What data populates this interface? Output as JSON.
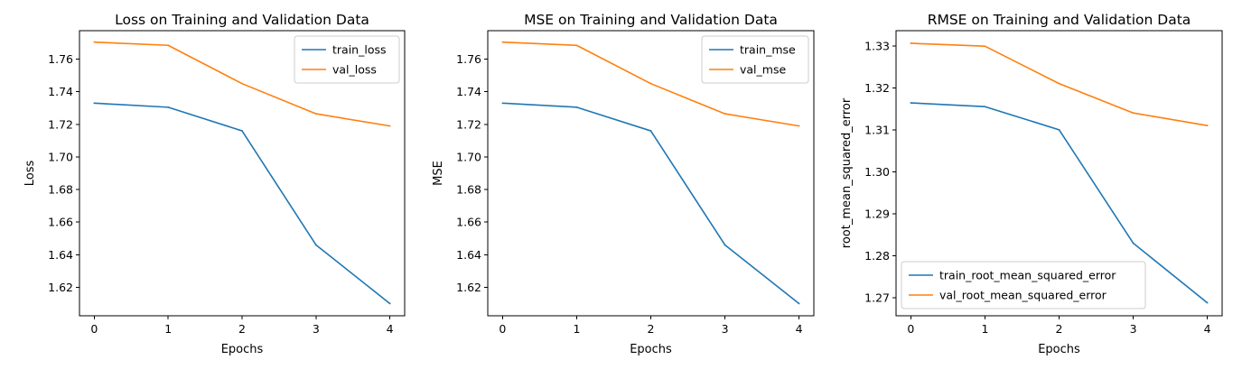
{
  "colors": {
    "train": "#1f77b4",
    "val": "#ff7f0e"
  },
  "chart_data": [
    {
      "type": "line",
      "title": "Loss on Training and Validation Data",
      "xlabel": "Epochs",
      "ylabel": "Loss",
      "x": [
        0,
        1,
        2,
        3,
        4
      ],
      "x_ticks": [
        "0",
        "1",
        "2",
        "3",
        "4"
      ],
      "xlim": [
        -0.2,
        4.2
      ],
      "ylim": [
        1.6025,
        1.7775
      ],
      "y_ticks": [
        "1.62",
        "1.64",
        "1.66",
        "1.68",
        "1.70",
        "1.72",
        "1.74",
        "1.76"
      ],
      "legend_position": "top-right",
      "series": [
        {
          "name": "train_loss",
          "color": "#1f77b4",
          "values": [
            1.733,
            1.7305,
            1.716,
            1.646,
            1.61
          ]
        },
        {
          "name": "val_loss",
          "color": "#ff7f0e",
          "values": [
            1.7705,
            1.7685,
            1.745,
            1.7265,
            1.719
          ]
        }
      ]
    },
    {
      "type": "line",
      "title": "MSE  on Training and Validation Data",
      "xlabel": "Epochs",
      "ylabel": "MSE",
      "x": [
        0,
        1,
        2,
        3,
        4
      ],
      "x_ticks": [
        "0",
        "1",
        "2",
        "3",
        "4"
      ],
      "xlim": [
        -0.2,
        4.2
      ],
      "ylim": [
        1.6025,
        1.7775
      ],
      "y_ticks": [
        "1.62",
        "1.64",
        "1.66",
        "1.68",
        "1.70",
        "1.72",
        "1.74",
        "1.76"
      ],
      "legend_position": "top-right",
      "series": [
        {
          "name": "train_mse",
          "color": "#1f77b4",
          "values": [
            1.733,
            1.7305,
            1.716,
            1.646,
            1.61
          ]
        },
        {
          "name": "val_mse",
          "color": "#ff7f0e",
          "values": [
            1.7705,
            1.7685,
            1.745,
            1.7265,
            1.719
          ]
        }
      ]
    },
    {
      "type": "line",
      "title": "RMSE on Training and Validation Data",
      "xlabel": "Epochs",
      "ylabel": "root_mean_squared_error",
      "x": [
        0,
        1,
        2,
        3,
        4
      ],
      "x_ticks": [
        "0",
        "1",
        "2",
        "3",
        "4"
      ],
      "xlim": [
        -0.2,
        4.2
      ],
      "ylim": [
        1.2657,
        1.3336
      ],
      "y_ticks": [
        "1.27",
        "1.28",
        "1.29",
        "1.30",
        "1.31",
        "1.32",
        "1.33"
      ],
      "legend_position": "bottom-left",
      "series": [
        {
          "name": "train_root_mean_squared_error",
          "color": "#1f77b4",
          "values": [
            1.3164,
            1.3155,
            1.31,
            1.283,
            1.2688
          ]
        },
        {
          "name": "val_root_mean_squared_error",
          "color": "#ff7f0e",
          "values": [
            1.3306,
            1.3299,
            1.321,
            1.314,
            1.311
          ]
        }
      ]
    }
  ]
}
